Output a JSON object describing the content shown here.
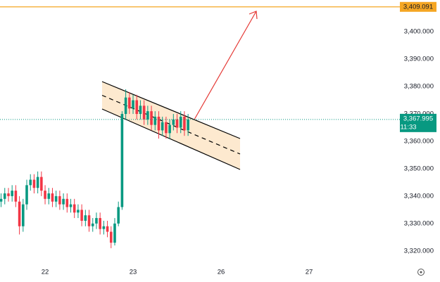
{
  "chart_data": {
    "type": "candlestick",
    "x": [
      -12,
      -11,
      -10,
      -9,
      -8,
      -7,
      -6,
      -5,
      -4,
      -3,
      -2,
      -1,
      0,
      1,
      2,
      3,
      4,
      5,
      6,
      7,
      8,
      9,
      10,
      11,
      12,
      13,
      14,
      15,
      16,
      17,
      18,
      19,
      20,
      21,
      22,
      23,
      24,
      25,
      26,
      27,
      28,
      29,
      30,
      31,
      32,
      33,
      34,
      35,
      36,
      37,
      38,
      39
    ],
    "open": [
      3338,
      3339,
      3341,
      3340,
      3342,
      3338,
      3329,
      3337,
      3344,
      3346,
      3343,
      3347,
      3342,
      3339,
      3341,
      3338,
      3340,
      3337,
      3339,
      3336,
      3337,
      3334,
      3335,
      3331,
      3333,
      3329,
      3330,
      3332,
      3328,
      3329,
      3327,
      3323,
      3330,
      3336,
      3370,
      3376,
      3372,
      3375,
      3370,
      3373,
      3368,
      3371,
      3366,
      3369,
      3364,
      3367,
      3363,
      3366,
      3368,
      3365,
      3369,
      3364
    ],
    "high": [
      3341,
      3343,
      3343,
      3344,
      3344,
      3340,
      3339,
      3346,
      3348,
      3348,
      3349,
      3349,
      3344,
      3343,
      3343,
      3342,
      3342,
      3341,
      3341,
      3339,
      3339,
      3337,
      3337,
      3335,
      3335,
      3332,
      3334,
      3334,
      3331,
      3331,
      3329,
      3332,
      3338,
      3371,
      3379,
      3378,
      3377,
      3377,
      3375,
      3375,
      3373,
      3373,
      3371,
      3371,
      3369,
      3369,
      3368,
      3370,
      3370,
      3371,
      3371,
      3370
    ],
    "low": [
      3336,
      3337,
      3338,
      3338,
      3336,
      3326,
      3327,
      3335,
      3342,
      3341,
      3341,
      3340,
      3337,
      3337,
      3336,
      3336,
      3335,
      3335,
      3334,
      3334,
      3332,
      3332,
      3329,
      3329,
      3327,
      3327,
      3328,
      3326,
      3326,
      3325,
      3321,
      3322,
      3329,
      3335,
      3368,
      3370,
      3370,
      3368,
      3368,
      3366,
      3366,
      3364,
      3364,
      3361,
      3362,
      3361,
      3361,
      3364,
      3363,
      3363,
      3362,
      3362
    ],
    "close": [
      3339,
      3341,
      3340,
      3342,
      3338,
      3329,
      3337,
      3344,
      3346,
      3343,
      3347,
      3342,
      3339,
      3341,
      3338,
      3340,
      3337,
      3339,
      3336,
      3337,
      3334,
      3335,
      3331,
      3333,
      3329,
      3330,
      3332,
      3328,
      3329,
      3327,
      3323,
      3330,
      3336,
      3370,
      3376,
      3372,
      3375,
      3370,
      3373,
      3368,
      3371,
      3366,
      3369,
      3364,
      3367,
      3363,
      3366,
      3368,
      3365,
      3369,
      3364,
      3368
    ],
    "up_color": "#089981",
    "down_color": "#f23645",
    "xlim": [
      -12.3,
      96.2
    ],
    "xticks": [
      {
        "value": 0,
        "label": "22"
      },
      {
        "value": 24,
        "label": "23"
      },
      {
        "value": 48,
        "label": "26"
      },
      {
        "value": 72,
        "label": "27"
      }
    ],
    "ylim": [
      3316.1,
      3411.6
    ],
    "yticks": [
      {
        "value": 3320,
        "label": "3,320.000"
      },
      {
        "value": 3330,
        "label": "3,330.000"
      },
      {
        "value": 3340,
        "label": "3,340.000"
      },
      {
        "value": 3350,
        "label": "3,350.000"
      },
      {
        "value": 3360,
        "label": "3,360.000"
      },
      {
        "value": 3370,
        "label": "3,370.000"
      },
      {
        "value": 3380,
        "label": "3,380.000"
      },
      {
        "value": 3390,
        "label": "3,390.000"
      },
      {
        "value": 3400,
        "label": "3,400.000"
      }
    ],
    "target_line": {
      "value": 3409.091,
      "label": "3,409.091",
      "color": "#f5a623"
    },
    "last_price": {
      "value": 3367.995,
      "label": "3,367.995",
      "time": "11:33",
      "color": "#089981"
    }
  }
}
